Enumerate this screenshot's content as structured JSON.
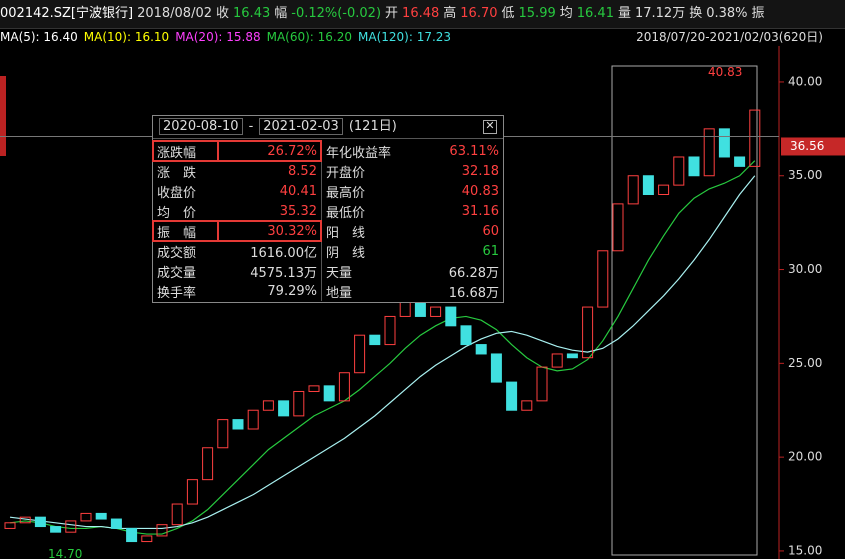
{
  "header": [
    {
      "text": "002142.SZ[宁波银行]",
      "color": "#ffffff"
    },
    {
      "text": "2018/08/02",
      "color": "#dddddd"
    },
    {
      "text": "收",
      "color": "#dddddd"
    },
    {
      "text": "16.43",
      "color": "#27c93f"
    },
    {
      "text": "幅",
      "color": "#dddddd"
    },
    {
      "text": "-0.12%(-0.02)",
      "color": "#27c93f"
    },
    {
      "text": "开",
      "color": "#dddddd"
    },
    {
      "text": "16.48",
      "color": "#ff4040"
    },
    {
      "text": "高",
      "color": "#dddddd"
    },
    {
      "text": "16.70",
      "color": "#ff4040"
    },
    {
      "text": "低",
      "color": "#dddddd"
    },
    {
      "text": "15.99",
      "color": "#27c93f"
    },
    {
      "text": "均",
      "color": "#dddddd"
    },
    {
      "text": "16.41",
      "color": "#27c93f"
    },
    {
      "text": "量",
      "color": "#dddddd"
    },
    {
      "text": "17.12万",
      "color": "#dddddd"
    },
    {
      "text": "换",
      "color": "#dddddd"
    },
    {
      "text": "0.38%",
      "color": "#dddddd"
    },
    {
      "text": "振",
      "color": "#dddddd"
    }
  ],
  "ma_row": [
    {
      "text": "MA(5): 16.40",
      "color": "#ffffff"
    },
    {
      "text": "MA(10): 16.10",
      "color": "#ffff00"
    },
    {
      "text": "MA(20): 15.88",
      "color": "#ff40ff"
    },
    {
      "text": "MA(60): 16.20",
      "color": "#27c93f"
    },
    {
      "text": "MA(120): 17.23",
      "color": "#40e0e0"
    }
  ],
  "range_label": "2018/07/20-2021/02/03(620日)",
  "popup": {
    "from": "2020-08-10",
    "to": "2021-02-03",
    "days": "(121日)",
    "rows": [
      [
        {
          "text": "涨跌幅"
        },
        {
          "text": "26.72%",
          "color": "#ff4040"
        },
        {
          "text": "年化收益率"
        },
        {
          "text": "63.11%",
          "color": "#ff4040"
        }
      ],
      [
        {
          "text": "涨　跌"
        },
        {
          "text": "8.52",
          "color": "#ff4040"
        },
        {
          "text": "开盘价"
        },
        {
          "text": "32.18",
          "color": "#ff4040"
        }
      ],
      [
        {
          "text": "收盘价"
        },
        {
          "text": "40.41",
          "color": "#ff4040"
        },
        {
          "text": "最高价"
        },
        {
          "text": "40.83",
          "color": "#ff4040"
        }
      ],
      [
        {
          "text": "均　价"
        },
        {
          "text": "35.32",
          "color": "#ff4040"
        },
        {
          "text": "最低价"
        },
        {
          "text": "31.16",
          "color": "#ff4040"
        }
      ],
      [
        {
          "text": "振　幅"
        },
        {
          "text": "30.32%",
          "color": "#ff4040"
        },
        {
          "text": "阳　线"
        },
        {
          "text": "60",
          "color": "#ff4040"
        }
      ],
      [
        {
          "text": "成交额"
        },
        {
          "text": "1616.00亿",
          "color": "#dddddd"
        },
        {
          "text": "阴　线"
        },
        {
          "text": "61",
          "color": "#27c93f"
        }
      ],
      [
        {
          "text": "成交量"
        },
        {
          "text": "4575.13万",
          "color": "#dddddd"
        },
        {
          "text": "天量"
        },
        {
          "text": "66.28万",
          "color": "#dddddd"
        }
      ],
      [
        {
          "text": "换手率"
        },
        {
          "text": "79.29%",
          "color": "#dddddd"
        },
        {
          "text": "地量"
        },
        {
          "text": "16.68万",
          "color": "#dddddd"
        }
      ]
    ],
    "boxed_rows": [
      0,
      4
    ]
  },
  "chart_data": {
    "type": "candlestick",
    "ylim": [
      14.57,
      41.17
    ],
    "yticks": [
      {
        "value": 40,
        "label": "40.00"
      },
      {
        "value": 35,
        "label": "35.00"
      },
      {
        "value": 30,
        "label": "30.00"
      },
      {
        "value": 25,
        "label": "25.00"
      },
      {
        "value": 20,
        "label": "20.00"
      },
      {
        "value": 15,
        "label": "15.00"
      }
    ],
    "up_color": "#ff4040",
    "down_color": "#40e0e0",
    "open": [
      16.2,
      16.5,
      16.8,
      16.3,
      16.0,
      16.6,
      17.0,
      16.7,
      16.2,
      15.5,
      15.8,
      16.4,
      17.5,
      18.8,
      20.5,
      22.0,
      21.5,
      22.5,
      23.0,
      22.2,
      23.5,
      23.8,
      23.0,
      24.5,
      26.5,
      26.0,
      27.5,
      28.5,
      27.5,
      28.0,
      27.0,
      26.0,
      25.5,
      24.0,
      22.5,
      23.0,
      24.8,
      25.5,
      25.3,
      28.0,
      31.0,
      33.5,
      35.0,
      34.0,
      34.5,
      36.0,
      35.0,
      37.5,
      36.0,
      35.5
    ],
    "close": [
      16.5,
      16.8,
      16.3,
      16.0,
      16.6,
      17.0,
      16.7,
      16.2,
      15.5,
      15.8,
      16.4,
      17.5,
      18.8,
      20.5,
      22.0,
      21.5,
      22.5,
      23.0,
      22.2,
      23.5,
      23.8,
      23.0,
      24.5,
      26.5,
      26.0,
      27.5,
      28.5,
      27.5,
      28.0,
      27.0,
      26.0,
      25.5,
      24.0,
      22.5,
      23.0,
      24.8,
      25.5,
      25.3,
      28.0,
      31.0,
      33.5,
      35.0,
      34.0,
      34.5,
      36.0,
      35.0,
      37.5,
      36.0,
      35.5,
      38.5
    ],
    "lines": [
      {
        "color": "#27c93f",
        "values": [
          16.5,
          16.6,
          16.5,
          16.3,
          16.2,
          16.2,
          16.3,
          16.2,
          16.0,
          15.9,
          15.9,
          16.2,
          16.6,
          17.2,
          18.0,
          18.8,
          19.6,
          20.4,
          21.0,
          21.6,
          22.2,
          22.6,
          23.0,
          23.6,
          24.3,
          25.0,
          25.8,
          26.5,
          27.0,
          27.4,
          27.5,
          27.3,
          26.8,
          26.0,
          25.3,
          24.8,
          24.6,
          24.7,
          25.2,
          26.2,
          27.5,
          29.0,
          30.5,
          31.8,
          33.0,
          33.8,
          34.3,
          34.6,
          35.0,
          35.8
        ]
      },
      {
        "color": "#a8f0f0",
        "values": [
          16.8,
          16.7,
          16.6,
          16.5,
          16.4,
          16.3,
          16.3,
          16.2,
          16.2,
          16.2,
          16.2,
          16.3,
          16.5,
          16.8,
          17.2,
          17.6,
          18.0,
          18.5,
          19.0,
          19.5,
          20.0,
          20.5,
          21.0,
          21.6,
          22.2,
          22.9,
          23.6,
          24.3,
          24.9,
          25.4,
          25.9,
          26.3,
          26.6,
          26.7,
          26.5,
          26.2,
          25.9,
          25.7,
          25.6,
          25.8,
          26.3,
          27.0,
          27.8,
          28.6,
          29.5,
          30.5,
          31.6,
          32.8,
          34.0,
          35.0
        ]
      }
    ],
    "current_price": 36.56,
    "high_label": {
      "value": 40.83,
      "label": "40.83"
    },
    "low_label": {
      "value": 14.7,
      "label": "14.70"
    }
  }
}
